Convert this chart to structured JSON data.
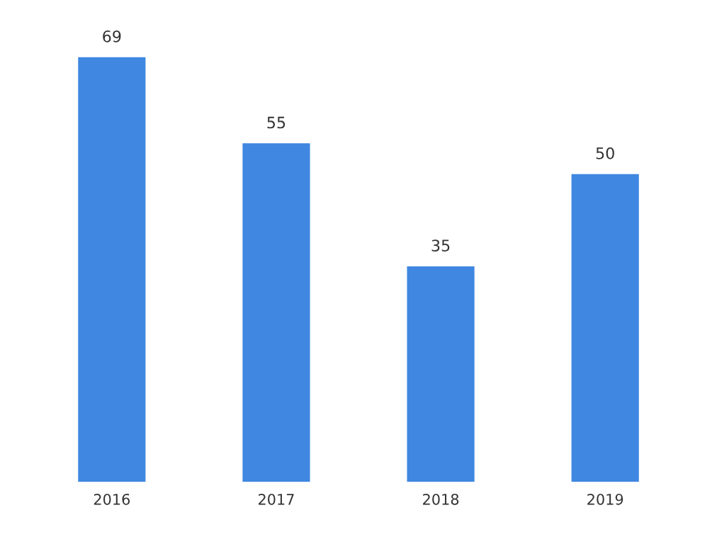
{
  "chart_data": {
    "type": "bar",
    "categories": [
      "2016",
      "2017",
      "2018",
      "2019"
    ],
    "values": [
      69,
      55,
      35,
      50
    ],
    "color": "#3f87e0",
    "data_labels": true,
    "grid": false,
    "legend": false
  }
}
